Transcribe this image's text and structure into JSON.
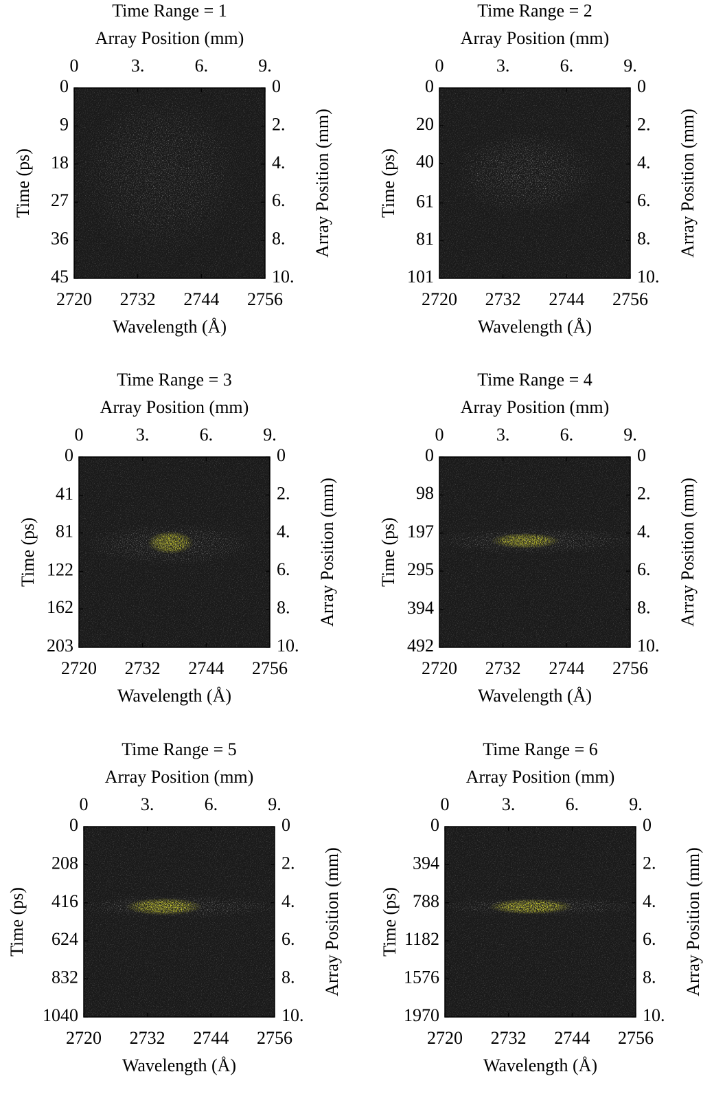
{
  "chart_data": [
    {
      "type": "image",
      "title": "Time Range = 1",
      "x2label": "Array Position (mm)",
      "xlabel": "Wavelength (Å)",
      "ylabel": "Time (ps)",
      "y2label": "Array Position (mm)",
      "xlim": [
        2720,
        2756
      ],
      "xticks": [
        2720,
        2732,
        2744,
        2756
      ],
      "x2lim": [
        0,
        9
      ],
      "x2ticks": [
        0,
        {
          "value": 3,
          "label": "3."
        },
        {
          "value": 6,
          "label": "6."
        },
        {
          "value": 9,
          "label": "9."
        }
      ],
      "ylim": [
        0,
        45
      ],
      "yticks": [
        0,
        9,
        18,
        27,
        36,
        45
      ],
      "y2lim": [
        0,
        10
      ],
      "y2ticks": [
        0,
        {
          "value": 2,
          "label": "2."
        },
        {
          "value": 4,
          "label": "4."
        },
        {
          "value": 6,
          "label": "6."
        },
        {
          "value": 8,
          "label": "8."
        },
        {
          "value": 10,
          "label": "10."
        }
      ]
    },
    {
      "type": "image",
      "title": "Time Range = 2",
      "x2label": "Array Position (mm)",
      "xlabel": "Wavelength (Å)",
      "ylabel": "Time (ps)",
      "y2label": "Array Position (mm)",
      "xlim": [
        2720,
        2756
      ],
      "xticks": [
        2720,
        2732,
        2744,
        2756
      ],
      "x2lim": [
        0,
        9
      ],
      "x2ticks": [
        0,
        {
          "value": 3,
          "label": "3."
        },
        {
          "value": 6,
          "label": "6."
        },
        {
          "value": 9,
          "label": "9."
        }
      ],
      "ylim": [
        0,
        101
      ],
      "yticks": [
        0,
        20,
        40,
        61,
        81,
        101
      ],
      "y2lim": [
        0,
        10
      ],
      "y2ticks": [
        0,
        {
          "value": 2,
          "label": "2."
        },
        {
          "value": 4,
          "label": "4."
        },
        {
          "value": 6,
          "label": "6."
        },
        {
          "value": 8,
          "label": "8."
        },
        {
          "value": 10,
          "label": "10."
        }
      ]
    },
    {
      "type": "image",
      "title": "Time Range = 3",
      "x2label": "Array Position (mm)",
      "xlabel": "Wavelength (Å)",
      "ylabel": "Time (ps)",
      "y2label": "Array Position (mm)",
      "xlim": [
        2720,
        2756
      ],
      "xticks": [
        2720,
        2732,
        2744,
        2756
      ],
      "x2lim": [
        0,
        9
      ],
      "x2ticks": [
        0,
        {
          "value": 3,
          "label": "3."
        },
        {
          "value": 6,
          "label": "6."
        },
        {
          "value": 9,
          "label": "9."
        }
      ],
      "ylim": [
        0,
        203
      ],
      "yticks": [
        0,
        41,
        81,
        122,
        162,
        203
      ],
      "y2lim": [
        0,
        10
      ],
      "y2ticks": [
        0,
        {
          "value": 2,
          "label": "2."
        },
        {
          "value": 4,
          "label": "4."
        },
        {
          "value": 6,
          "label": "6."
        },
        {
          "value": 8,
          "label": "8."
        },
        {
          "value": 10,
          "label": "10."
        }
      ]
    },
    {
      "type": "image",
      "title": "Time Range = 4",
      "x2label": "Array Position (mm)",
      "xlabel": "Wavelength (Å)",
      "ylabel": "Time (ps)",
      "y2label": "Array Position (mm)",
      "xlim": [
        2720,
        2756
      ],
      "xticks": [
        2720,
        2732,
        2744,
        2756
      ],
      "x2lim": [
        0,
        9
      ],
      "x2ticks": [
        0,
        {
          "value": 3,
          "label": "3."
        },
        {
          "value": 6,
          "label": "6."
        },
        {
          "value": 9,
          "label": "9."
        }
      ],
      "ylim": [
        0,
        492
      ],
      "yticks": [
        0,
        98,
        197,
        295,
        394,
        492
      ],
      "y2lim": [
        0,
        10
      ],
      "y2ticks": [
        0,
        {
          "value": 2,
          "label": "2."
        },
        {
          "value": 4,
          "label": "4."
        },
        {
          "value": 6,
          "label": "6."
        },
        {
          "value": 8,
          "label": "8."
        },
        {
          "value": 10,
          "label": "10."
        }
      ]
    },
    {
      "type": "image",
      "title": "Time Range = 5",
      "x2label": "Array Position (mm)",
      "xlabel": "Wavelength (Å)",
      "ylabel": "Time (ps)",
      "y2label": "Array Position (mm)",
      "xlim": [
        2720,
        2756
      ],
      "xticks": [
        2720,
        2732,
        2744,
        2756
      ],
      "x2lim": [
        0,
        9
      ],
      "x2ticks": [
        0,
        {
          "value": 3,
          "label": "3."
        },
        {
          "value": 6,
          "label": "6."
        },
        {
          "value": 9,
          "label": "9."
        }
      ],
      "ylim": [
        0,
        1040
      ],
      "yticks": [
        0,
        208,
        416,
        624,
        832,
        1040
      ],
      "y2lim": [
        0,
        10
      ],
      "y2ticks": [
        0,
        {
          "value": 2,
          "label": "2."
        },
        {
          "value": 4,
          "label": "4."
        },
        {
          "value": 6,
          "label": "6."
        },
        {
          "value": 8,
          "label": "8."
        },
        {
          "value": 10,
          "label": "10."
        }
      ]
    },
    {
      "type": "image",
      "title": "Time Range = 6",
      "x2label": "Array Position (mm)",
      "xlabel": "Wavelength (Å)",
      "ylabel": "Time (ps)",
      "y2label": "Array Position (mm)",
      "xlim": [
        2720,
        2756
      ],
      "xticks": [
        2720,
        2732,
        2744,
        2756
      ],
      "x2lim": [
        0,
        9
      ],
      "x2ticks": [
        0,
        {
          "value": 3,
          "label": "3."
        },
        {
          "value": 6,
          "label": "6."
        },
        {
          "value": 9,
          "label": "9."
        }
      ],
      "ylim": [
        0,
        1970
      ],
      "yticks": [
        0,
        394,
        788,
        1182,
        1576,
        1970
      ],
      "y2lim": [
        0,
        10
      ],
      "y2ticks": [
        0,
        {
          "value": 2,
          "label": "2."
        },
        {
          "value": 4,
          "label": "4."
        },
        {
          "value": 6,
          "label": "6."
        },
        {
          "value": 8,
          "label": "8."
        },
        {
          "value": 10,
          "label": "10."
        }
      ]
    }
  ]
}
